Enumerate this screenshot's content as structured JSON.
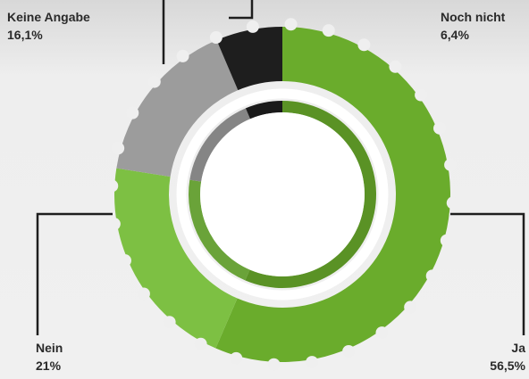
{
  "chart_data": {
    "type": "donut",
    "categories": [
      "Ja",
      "Nein",
      "Keine Angabe",
      "Noch nicht"
    ],
    "values": [
      56.5,
      21,
      16.1,
      6.4
    ],
    "value_labels": [
      "56,5%",
      "21%",
      "16,1%",
      "6,4%"
    ],
    "colors": [
      "#6aac2c",
      "#7dc043",
      "#9c9c9c",
      "#1e1e1e"
    ]
  }
}
